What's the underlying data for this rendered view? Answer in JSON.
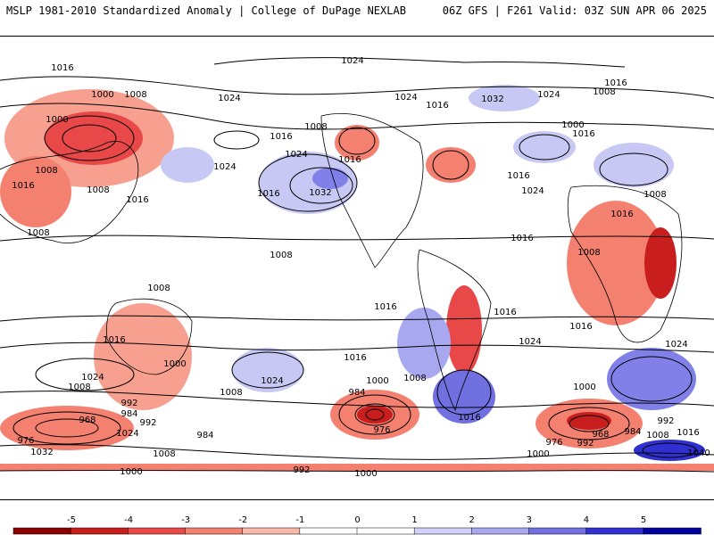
{
  "header": {
    "left_title": "MSLP 1981-2010 Standardized Anomaly | College of DuPage NEXLAB",
    "right_title": "06Z GFS | F261 Valid: 03Z SUN APR 06 2025"
  },
  "colors": {
    "neg_strong": "#a00000",
    "neg_mid": "#e03030",
    "neg_light": "#f7a090",
    "pos_light": "#c8c8f4",
    "pos_mid": "#8080e8",
    "pos_strong": "#2020c0",
    "contour": "#000000"
  },
  "colorbar": {
    "ticks": [
      "-5",
      "-4",
      "-3",
      "-2",
      "-1",
      "0",
      "1",
      "2",
      "3",
      "4",
      "5"
    ],
    "colors": [
      "#8b0000",
      "#c81e1e",
      "#e84848",
      "#f48070",
      "#f9b8a8",
      "#ffffff",
      "#ffffff",
      "#d0d0f8",
      "#a8a8f0",
      "#7070e0",
      "#3030d0",
      "#0000a0"
    ]
  },
  "isobar_labels": [
    {
      "text": "1024"
    },
    {
      "text": "1016"
    },
    {
      "text": "1000"
    },
    {
      "text": "1008"
    },
    {
      "text": "1000"
    },
    {
      "text": "1024"
    },
    {
      "text": "1016"
    },
    {
      "text": "1008"
    },
    {
      "text": "1024"
    },
    {
      "text": "1032"
    },
    {
      "text": "1016"
    },
    {
      "text": "1008"
    },
    {
      "text": "1016"
    },
    {
      "text": "1016"
    },
    {
      "text": "1008"
    },
    {
      "text": "1016"
    },
    {
      "text": "1008"
    },
    {
      "text": "1024"
    },
    {
      "text": "1024"
    },
    {
      "text": "1016"
    },
    {
      "text": "1032"
    },
    {
      "text": "1024"
    },
    {
      "text": "1008"
    },
    {
      "text": "1000"
    },
    {
      "text": "1016"
    },
    {
      "text": "1024"
    },
    {
      "text": "1016"
    },
    {
      "text": "1016"
    },
    {
      "text": "1008"
    },
    {
      "text": "1016"
    },
    {
      "text": "1008"
    },
    {
      "text": "1008"
    },
    {
      "text": "1008"
    },
    {
      "text": "1016"
    },
    {
      "text": "1016"
    },
    {
      "text": "1016"
    },
    {
      "text": "1024"
    },
    {
      "text": "1016"
    },
    {
      "text": "1024"
    },
    {
      "text": "1016"
    },
    {
      "text": "1024"
    },
    {
      "text": "1000"
    },
    {
      "text": "1008"
    },
    {
      "text": "1008"
    },
    {
      "text": "1000"
    },
    {
      "text": "1016"
    },
    {
      "text": "1024"
    },
    {
      "text": "1008"
    },
    {
      "text": "1000"
    },
    {
      "text": "984"
    },
    {
      "text": "976"
    },
    {
      "text": "992"
    },
    {
      "text": "984"
    },
    {
      "text": "968"
    },
    {
      "text": "992"
    },
    {
      "text": "1024"
    },
    {
      "text": "984"
    },
    {
      "text": "976"
    },
    {
      "text": "1032"
    },
    {
      "text": "1008"
    },
    {
      "text": "1000"
    },
    {
      "text": "992"
    },
    {
      "text": "1000"
    },
    {
      "text": "1016"
    },
    {
      "text": "992"
    },
    {
      "text": "968"
    },
    {
      "text": "984"
    },
    {
      "text": "992"
    },
    {
      "text": "976"
    },
    {
      "text": "1008"
    },
    {
      "text": "1016"
    },
    {
      "text": "1000"
    },
    {
      "text": "1040"
    }
  ]
}
